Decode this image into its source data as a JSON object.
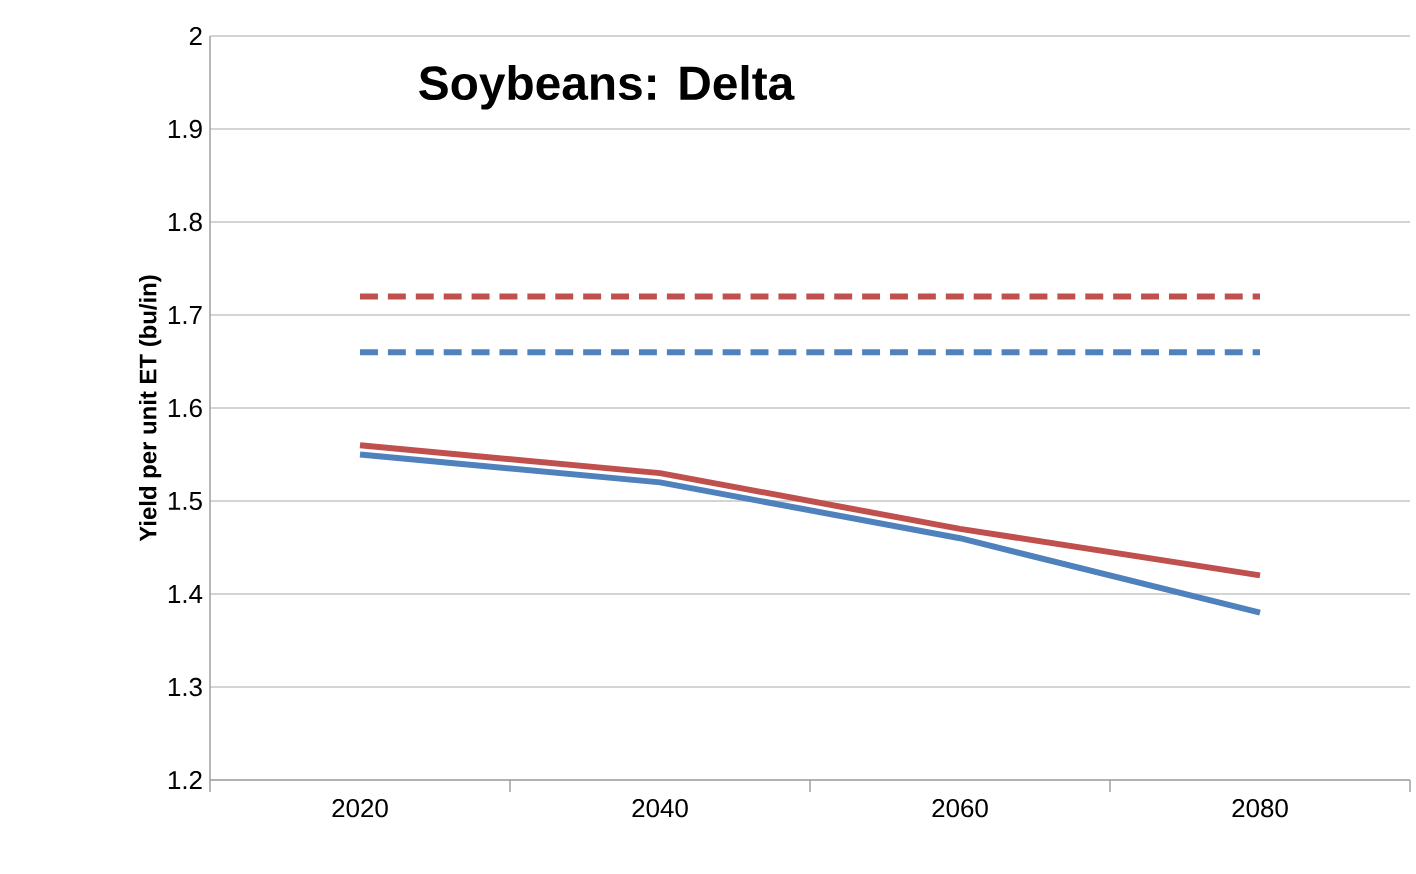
{
  "chart_data": {
    "type": "line",
    "title": "Soybeans: Delta",
    "ylabel": "Yield per unit ET (bu/in)",
    "categories": [
      "2020",
      "2040",
      "2060",
      "2080"
    ],
    "series": [
      {
        "color": "#c0504d",
        "line_style": "dashed",
        "values": [
          1.72,
          1.72,
          1.72,
          1.72
        ]
      },
      {
        "color": "#4f81bd",
        "line_style": "dashed",
        "values": [
          1.66,
          1.66,
          1.66,
          1.66
        ]
      },
      {
        "color": "#c0504d",
        "line_style": "solid",
        "values": [
          1.56,
          1.53,
          1.47,
          1.42
        ]
      },
      {
        "color": "#4f81bd",
        "line_style": "solid",
        "values": [
          1.55,
          1.52,
          1.46,
          1.38
        ]
      }
    ],
    "ylim": [
      1.2,
      2
    ],
    "yticks": [
      1.2,
      1.3,
      1.4,
      1.5,
      1.6,
      1.7,
      1.8,
      1.9,
      2
    ],
    "grid": "y"
  }
}
